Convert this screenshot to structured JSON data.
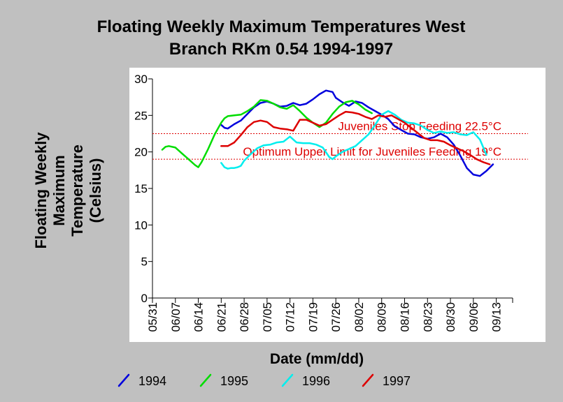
{
  "chart_data": {
    "type": "line",
    "title_lines": [
      "Floating Weekly Maximum Temperatures West",
      "Branch RKm 0.54 1994-1997"
    ],
    "ylabel_lines": [
      "Floating Weekly",
      "Maximum",
      "Temperature",
      "(Celsius)"
    ],
    "xlabel": "Date (mm/dd)",
    "ylim": [
      0,
      30
    ],
    "yticks": [
      0,
      5,
      10,
      15,
      20,
      25,
      30
    ],
    "x_axis_range_days": [
      0,
      110
    ],
    "x_tick_labels": [
      "05/31",
      "06/07",
      "06/14",
      "06/21",
      "06/28",
      "07/05",
      "07/12",
      "07/19",
      "07/26",
      "08/02",
      "08/09",
      "08/16",
      "08/23",
      "08/30",
      "09/06",
      "09/13"
    ],
    "x_tick_step_days": 7,
    "grid": false,
    "legend_position": "bottom",
    "reference_lines": [
      {
        "y": 22.5,
        "label": "Juveniles Stop Feeding 22.5°C",
        "color": "#dd0000"
      },
      {
        "y": 19,
        "label": "Optimum Upper Limit for Juveniles Feeding 19°C",
        "color": "#dd0000"
      }
    ],
    "series": [
      {
        "name": "1994",
        "color": "#0000dd",
        "x": [
          21,
          22,
          23,
          25,
          27,
          29,
          31,
          33,
          35,
          37,
          39,
          41,
          43,
          45,
          47,
          49,
          51,
          53,
          55,
          56,
          58,
          60,
          62,
          64,
          66,
          68,
          70,
          72,
          74,
          76,
          78,
          80,
          82,
          84,
          86,
          88,
          90,
          92,
          94,
          96,
          98,
          100,
          102,
          104
        ],
        "y": [
          23.7,
          23.3,
          23.2,
          23.8,
          24.3,
          25.2,
          26.1,
          26.7,
          26.9,
          26.6,
          26.2,
          26.3,
          26.7,
          26.4,
          26.6,
          27.2,
          27.9,
          28.4,
          28.2,
          27.4,
          26.8,
          26.3,
          26.9,
          26.7,
          26.1,
          25.6,
          25.1,
          24.5,
          23.5,
          23.0,
          22.5,
          22.4,
          22.0,
          21.8,
          22.0,
          22.5,
          22.0,
          21.0,
          19.5,
          17.8,
          16.9,
          16.7,
          17.4,
          18.3
        ]
      },
      {
        "name": "1995",
        "color": "#00dd00",
        "x": [
          3,
          4,
          5,
          7,
          9,
          11,
          13,
          14,
          15,
          17,
          19,
          21,
          22,
          23,
          25,
          27,
          29,
          31,
          33,
          35,
          37,
          39,
          41,
          43,
          45,
          47,
          49,
          51,
          53,
          55,
          57,
          59,
          61,
          63,
          65,
          67
        ],
        "y": [
          20.3,
          20.7,
          20.8,
          20.6,
          19.8,
          19.0,
          18.2,
          17.9,
          18.6,
          20.4,
          22.4,
          24.0,
          24.6,
          24.9,
          25.0,
          25.1,
          25.6,
          26.2,
          27.1,
          27.0,
          26.6,
          26.1,
          25.9,
          26.4,
          25.6,
          24.7,
          24.0,
          23.4,
          24.0,
          25.2,
          26.2,
          26.8,
          27.0,
          26.5,
          25.8,
          25.3
        ]
      },
      {
        "name": "1996",
        "color": "#00eeee",
        "x": [
          21,
          22,
          23,
          24,
          25,
          26,
          27,
          28,
          30,
          32,
          34,
          36,
          38,
          40,
          42,
          44,
          46,
          48,
          50,
          52,
          54,
          55,
          56,
          58,
          60,
          62,
          64,
          66,
          68,
          70,
          72,
          74,
          76,
          78,
          80,
          82,
          84,
          86,
          88,
          90,
          92,
          94,
          96,
          98,
          100,
          102
        ],
        "y": [
          18.5,
          17.9,
          17.7,
          17.8,
          17.8,
          17.9,
          18.1,
          18.8,
          19.7,
          20.5,
          20.9,
          21.0,
          21.3,
          21.4,
          22.1,
          21.3,
          21.2,
          21.2,
          21.0,
          20.6,
          19.3,
          19.0,
          19.4,
          20.0,
          20.4,
          20.8,
          21.6,
          22.4,
          23.7,
          25.1,
          25.6,
          25.1,
          24.4,
          24.0,
          23.9,
          23.6,
          23.0,
          22.6,
          22.8,
          22.6,
          22.7,
          22.4,
          22.3,
          22.7,
          21.7,
          19.6
        ]
      },
      {
        "name": "1997",
        "color": "#dd0000",
        "x": [
          21,
          23,
          25,
          27,
          29,
          31,
          33,
          35,
          37,
          39,
          41,
          43,
          45,
          47,
          49,
          51,
          53,
          55,
          57,
          59,
          61,
          63,
          65,
          67,
          69,
          71,
          73,
          75,
          77,
          79,
          81,
          83,
          85,
          87,
          89,
          91,
          93,
          95,
          97,
          99,
          101,
          103
        ],
        "y": [
          20.8,
          20.8,
          21.3,
          22.3,
          23.4,
          24.1,
          24.3,
          24.1,
          23.4,
          23.2,
          23.1,
          22.9,
          24.4,
          24.4,
          24.0,
          23.6,
          23.8,
          24.4,
          25.0,
          25.5,
          25.4,
          25.2,
          24.8,
          24.5,
          25.0,
          24.8,
          25.0,
          24.5,
          24.0,
          23.3,
          22.6,
          21.9,
          21.6,
          21.6,
          21.4,
          20.9,
          20.5,
          20.1,
          19.6,
          19.0,
          18.6,
          18.3
        ]
      }
    ]
  }
}
